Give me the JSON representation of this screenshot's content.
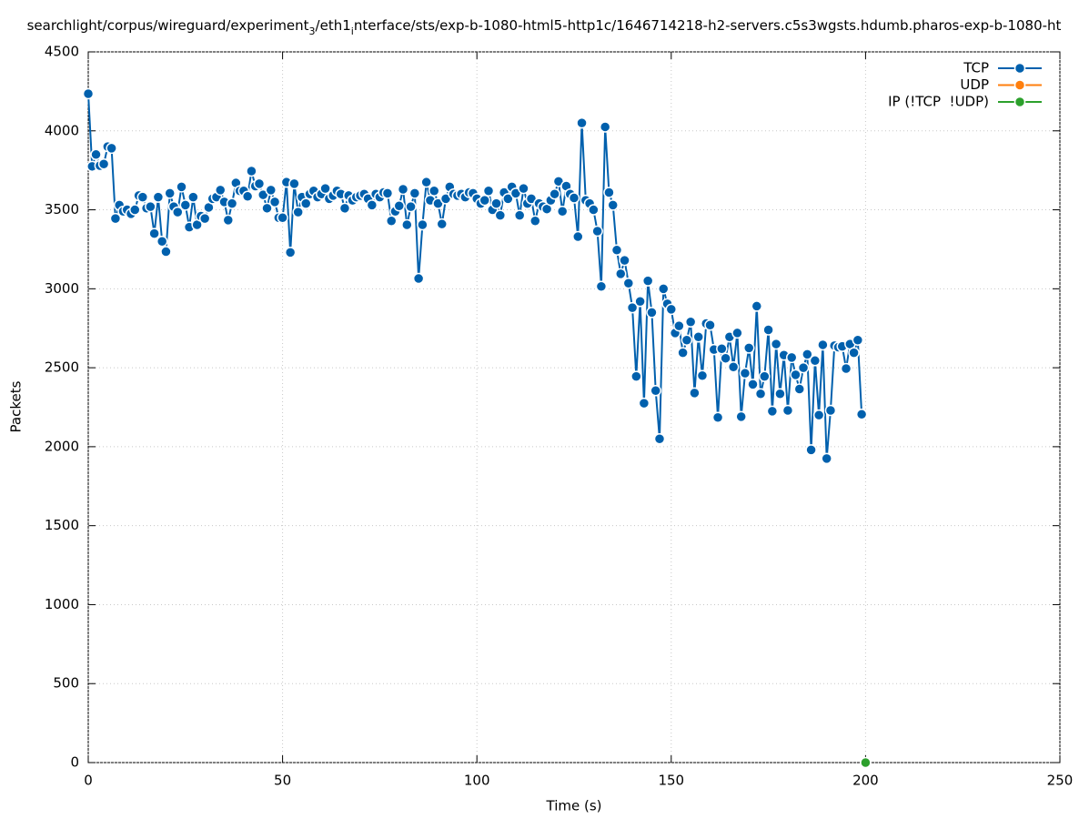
{
  "chart_data": {
    "type": "line",
    "title_parts": [
      "searchlight/corpus/wireguard/experiment",
      "3",
      "/eth1",
      "i",
      "nterface/sts/exp-b-1080-html5-http1c/1646714218-h2-servers.c5s3wgsts.hdumb.pharos-exp-b-1080-ht"
    ],
    "xlabel": "Time (s)",
    "ylabel": "Packets",
    "xlim": [
      0,
      250
    ],
    "xticks": [
      0,
      50,
      100,
      150,
      200,
      250
    ],
    "ylim": [
      0,
      4500
    ],
    "yticks": [
      0,
      500,
      1000,
      1500,
      2000,
      2500,
      3000,
      3500,
      4000,
      4500
    ],
    "grid": true,
    "legend": "top-right",
    "series": [
      {
        "name": "TCP",
        "color": "#0060ad",
        "x": [
          0,
          1,
          2,
          3,
          4,
          5,
          6,
          7,
          8,
          9,
          10,
          11,
          12,
          13,
          14,
          15,
          16,
          17,
          18,
          19,
          20,
          21,
          22,
          23,
          24,
          25,
          26,
          27,
          28,
          29,
          30,
          31,
          32,
          33,
          34,
          35,
          36,
          37,
          38,
          39,
          40,
          41,
          42,
          43,
          44,
          45,
          46,
          47,
          48,
          49,
          50,
          51,
          52,
          53,
          54,
          55,
          56,
          57,
          58,
          59,
          60,
          61,
          62,
          63,
          64,
          65,
          66,
          67,
          68,
          69,
          70,
          71,
          72,
          73,
          74,
          75,
          76,
          77,
          78,
          79,
          80,
          81,
          82,
          83,
          84,
          85,
          86,
          87,
          88,
          89,
          90,
          91,
          92,
          93,
          94,
          95,
          96,
          97,
          98,
          99,
          100,
          101,
          102,
          103,
          104,
          105,
          106,
          107,
          108,
          109,
          110,
          111,
          112,
          113,
          114,
          115,
          116,
          117,
          118,
          119,
          120,
          121,
          122,
          123,
          124,
          125,
          126,
          127,
          128,
          129,
          130,
          131,
          132,
          133,
          134,
          135,
          136,
          137,
          138,
          139,
          140,
          141,
          142,
          143,
          144,
          145,
          146,
          147,
          148,
          149,
          150,
          151,
          152,
          153,
          154,
          155,
          156,
          157,
          158,
          159,
          160,
          161,
          162,
          163,
          164,
          165,
          166,
          167,
          168,
          169,
          170,
          171,
          172,
          173,
          174,
          175,
          176,
          177,
          178,
          179,
          180,
          181,
          182,
          183,
          184,
          185,
          186,
          187,
          188,
          189,
          190,
          191,
          192,
          193,
          194,
          195,
          196,
          197,
          198,
          199
        ],
        "values": [
          4235,
          3775,
          3850,
          3780,
          3790,
          3900,
          3890,
          3445,
          3530,
          3490,
          3500,
          3475,
          3500,
          3590,
          3580,
          3510,
          3520,
          3350,
          3580,
          3300,
          3235,
          3605,
          3520,
          3485,
          3645,
          3530,
          3390,
          3580,
          3405,
          3460,
          3445,
          3515,
          3570,
          3580,
          3625,
          3550,
          3435,
          3540,
          3670,
          3620,
          3620,
          3585,
          3745,
          3650,
          3665,
          3595,
          3510,
          3625,
          3550,
          3450,
          3450,
          3675,
          3230,
          3665,
          3485,
          3580,
          3540,
          3600,
          3620,
          3580,
          3600,
          3635,
          3570,
          3590,
          3620,
          3600,
          3510,
          3590,
          3560,
          3580,
          3590,
          3600,
          3570,
          3530,
          3600,
          3580,
          3610,
          3605,
          3430,
          3490,
          3525,
          3630,
          3405,
          3520,
          3605,
          3065,
          3405,
          3675,
          3560,
          3620,
          3540,
          3410,
          3570,
          3645,
          3600,
          3590,
          3600,
          3580,
          3610,
          3605,
          3570,
          3540,
          3560,
          3620,
          3500,
          3540,
          3465,
          3610,
          3570,
          3645,
          3605,
          3465,
          3635,
          3540,
          3570,
          3430,
          3540,
          3520,
          3505,
          3560,
          3600,
          3680,
          3490,
          3650,
          3600,
          3575,
          3330,
          4050,
          3560,
          3540,
          3500,
          3365,
          3015,
          4025,
          3610,
          3530,
          3245,
          3095,
          3180,
          3035,
          2880,
          2445,
          2920,
          2275,
          3050,
          2850,
          2355,
          2050,
          3000,
          2905,
          2870,
          2720,
          2765,
          2595,
          2675,
          2790,
          2340,
          2695,
          2450,
          2780,
          2770,
          2615,
          2185,
          2620,
          2560,
          2695,
          2505,
          2720,
          2190,
          2465,
          2625,
          2395,
          2890,
          2335,
          2445,
          2740,
          2225,
          2650,
          2335,
          2580,
          2230,
          2565,
          2455,
          2365,
          2500,
          2585,
          1980,
          2545,
          2200,
          2645,
          1925,
          2230,
          2640,
          2630,
          2635,
          2495,
          2650,
          2595,
          2675,
          2205
        ]
      },
      {
        "name": "UDP",
        "color": "#ff7f0e",
        "x": [],
        "values": []
      },
      {
        "name": "IP (!TCP  !UDP)",
        "color": "#2ca02c",
        "x": [
          200
        ],
        "values": [
          0
        ]
      }
    ]
  }
}
